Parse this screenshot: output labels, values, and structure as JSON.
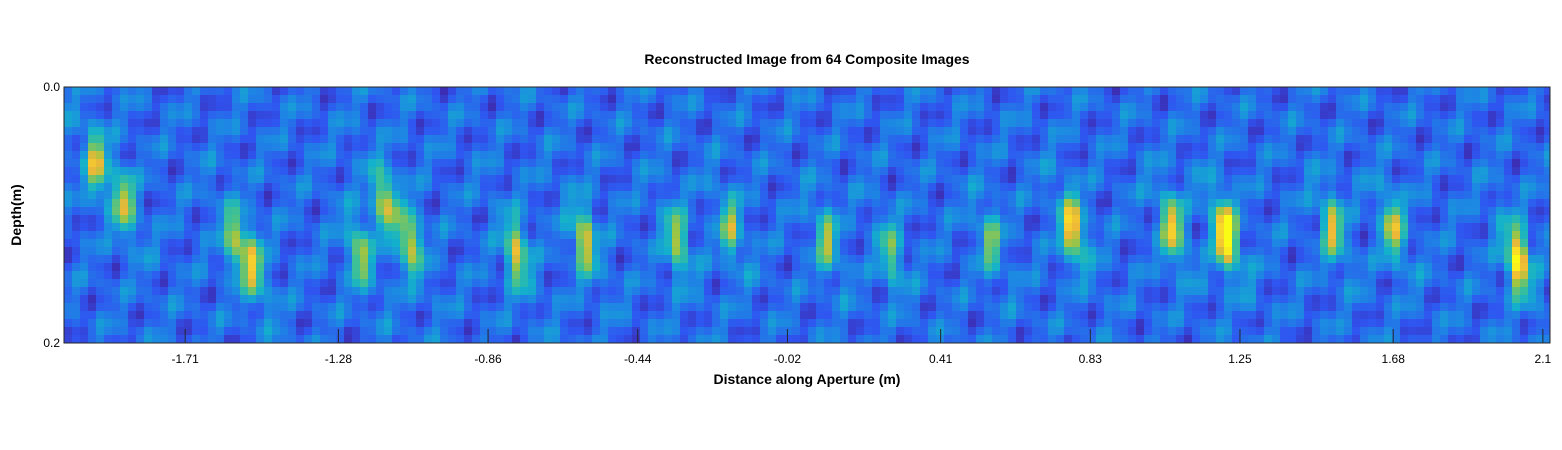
{
  "chart_data": {
    "type": "heatmap",
    "title": "Reconstructed Image from 64 Composite Images",
    "xlabel": "Distance along Aperture (m)",
    "ylabel": "Depth(m)",
    "xlim": [
      -2.05,
      2.12
    ],
    "ylim": [
      0.0,
      0.2
    ],
    "y_reversed": true,
    "x_ticks": [
      "-1.71",
      "-1.28",
      "-0.86",
      "-0.44",
      "-0.02",
      "0.41",
      "0.83",
      "1.25",
      "1.68",
      "2.1"
    ],
    "y_ticks": [
      "0.0",
      "0.2"
    ],
    "colormap": "parula",
    "colors": [
      "#3e26a8",
      "#2f55f1",
      "#1e85e4",
      "#13b1cc",
      "#3fc193",
      "#9fc543",
      "#edb838",
      "#f8d72a",
      "#f9fb15"
    ],
    "grid": false,
    "legend": "none",
    "hotspots": [
      {
        "x": -1.96,
        "depth": 0.06,
        "intensity": 0.55
      },
      {
        "x": -1.88,
        "depth": 0.09,
        "intensity": 0.5
      },
      {
        "x": -1.57,
        "depth": 0.12,
        "intensity": 0.45
      },
      {
        "x": -1.52,
        "depth": 0.14,
        "intensity": 0.55
      },
      {
        "x": -1.22,
        "depth": 0.13,
        "intensity": 0.5
      },
      {
        "x": -1.15,
        "depth": 0.09,
        "intensity": 0.55
      },
      {
        "x": -1.08,
        "depth": 0.12,
        "intensity": 0.55
      },
      {
        "x": -0.78,
        "depth": 0.13,
        "intensity": 0.6
      },
      {
        "x": -0.59,
        "depth": 0.12,
        "intensity": 0.6
      },
      {
        "x": -0.33,
        "depth": 0.12,
        "intensity": 0.5
      },
      {
        "x": -0.18,
        "depth": 0.11,
        "intensity": 0.45
      },
      {
        "x": 0.09,
        "depth": 0.12,
        "intensity": 0.45
      },
      {
        "x": 0.27,
        "depth": 0.13,
        "intensity": 0.4
      },
      {
        "x": 0.55,
        "depth": 0.12,
        "intensity": 0.4
      },
      {
        "x": 0.78,
        "depth": 0.11,
        "intensity": 0.75
      },
      {
        "x": 1.06,
        "depth": 0.11,
        "intensity": 0.65
      },
      {
        "x": 1.21,
        "depth": 0.115,
        "intensity": 1.0
      },
      {
        "x": 1.51,
        "depth": 0.11,
        "intensity": 0.55
      },
      {
        "x": 1.68,
        "depth": 0.11,
        "intensity": 0.55
      },
      {
        "x": 2.03,
        "depth": 0.135,
        "intensity": 0.85
      }
    ]
  }
}
